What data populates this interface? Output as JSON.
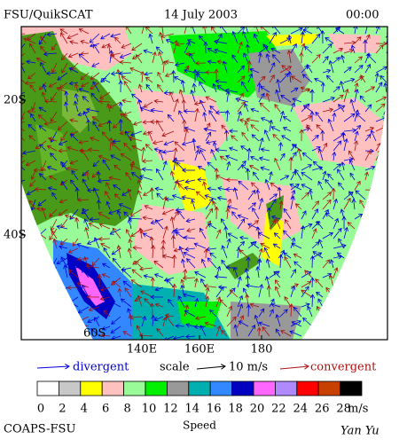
{
  "header": {
    "left": "FSU/QuikSCAT",
    "center": "14 July 2003",
    "right": "00:00"
  },
  "map": {
    "lat_labels": [
      "20S",
      "40S",
      "60S"
    ],
    "lon_labels": [
      "140E",
      "160E",
      "180"
    ]
  },
  "legend": {
    "divergent": "divergent",
    "scale": "scale",
    "scale_value": "10 m/s",
    "convergent": "convergent"
  },
  "colorbar": {
    "ticks": [
      0,
      2,
      4,
      6,
      8,
      10,
      12,
      14,
      16,
      18,
      20,
      22,
      24,
      26,
      28
    ],
    "unit": "m/s",
    "title": "Speed",
    "colors": [
      "#ffffff",
      "#c8c8c8",
      "#ffff00",
      "#ffc0c0",
      "#98fb98",
      "#00f000",
      "#999999",
      "#00b0b0",
      "#3388ff",
      "#0000c0",
      "#ff66ff",
      "#b088ff",
      "#ff0000",
      "#c84000",
      "#000000"
    ]
  },
  "footer": {
    "left": "COAPS-FSU",
    "right": "Yan Yu"
  }
}
